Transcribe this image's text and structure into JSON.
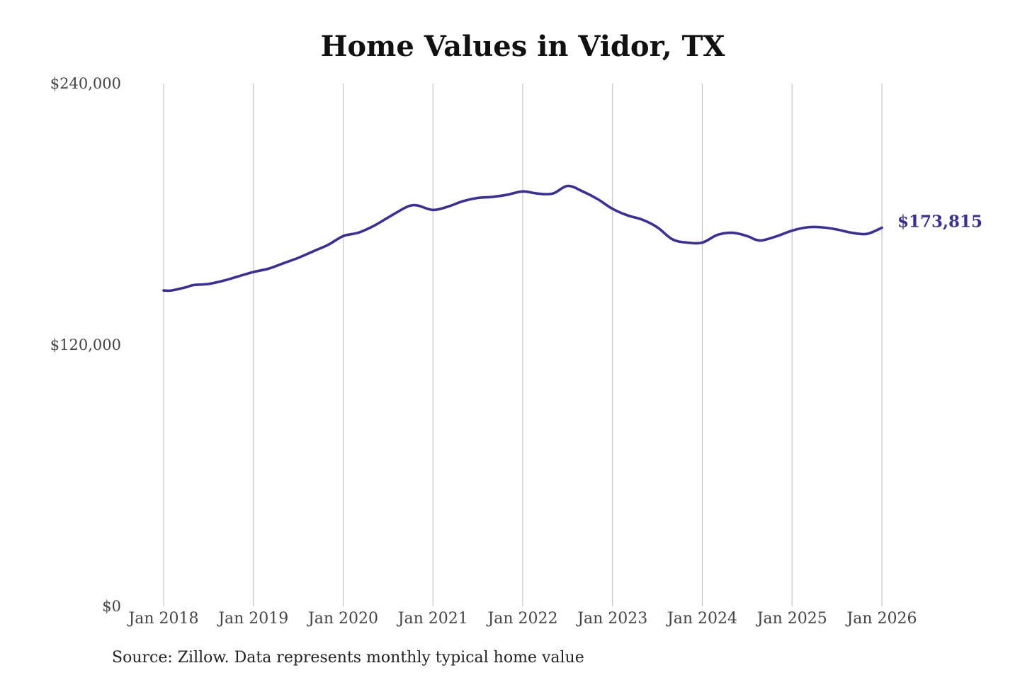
{
  "chart_data": {
    "type": "line",
    "title": "Home Values in Vidor, TX",
    "xlabel": "",
    "ylabel": "",
    "ylim": [
      0,
      240000
    ],
    "yticks": [
      0,
      120000,
      240000
    ],
    "ytick_labels": [
      "$0",
      "$120,000",
      "$240,000"
    ],
    "xlim": [
      "2018-01",
      "2026-01"
    ],
    "xticks": [
      "2018-01",
      "2019-01",
      "2020-01",
      "2021-01",
      "2022-01",
      "2023-01",
      "2024-01",
      "2025-01",
      "2026-01"
    ],
    "xtick_labels": [
      "Jan 2018",
      "Jan 2019",
      "Jan 2020",
      "Jan 2021",
      "Jan 2022",
      "Jan 2023",
      "Jan 2024",
      "Jan 2025",
      "Jan 2026"
    ],
    "grid": "vertical",
    "legend": "none",
    "series": [
      {
        "color": "#3a2f9a",
        "end_label": "$173,815",
        "points": [
          [
            "2018-01",
            145000
          ],
          [
            "2018-02",
            145000
          ],
          [
            "2018-04",
            146500
          ],
          [
            "2018-05",
            147500
          ],
          [
            "2018-07",
            148000
          ],
          [
            "2018-09",
            149500
          ],
          [
            "2018-11",
            151500
          ],
          [
            "2019-01",
            153500
          ],
          [
            "2019-03",
            155000
          ],
          [
            "2019-05",
            157500
          ],
          [
            "2019-07",
            160000
          ],
          [
            "2019-09",
            163000
          ],
          [
            "2019-11",
            166000
          ],
          [
            "2020-01",
            170000
          ],
          [
            "2020-03",
            171500
          ],
          [
            "2020-05",
            174500
          ],
          [
            "2020-07",
            178500
          ],
          [
            "2020-09",
            182500
          ],
          [
            "2020-10",
            184000
          ],
          [
            "2020-11",
            184000
          ],
          [
            "2021-01",
            182000
          ],
          [
            "2021-03",
            183500
          ],
          [
            "2021-05",
            186000
          ],
          [
            "2021-07",
            187500
          ],
          [
            "2021-09",
            188000
          ],
          [
            "2021-11",
            189000
          ],
          [
            "2022-01",
            190500
          ],
          [
            "2022-03",
            189500
          ],
          [
            "2022-05",
            189500
          ],
          [
            "2022-07",
            193000
          ],
          [
            "2022-09",
            190500
          ],
          [
            "2022-11",
            187000
          ],
          [
            "2023-01",
            182500
          ],
          [
            "2023-03",
            179500
          ],
          [
            "2023-05",
            177500
          ],
          [
            "2023-07",
            174000
          ],
          [
            "2023-09",
            168500
          ],
          [
            "2023-11",
            167000
          ],
          [
            "2024-01",
            167000
          ],
          [
            "2024-03",
            170500
          ],
          [
            "2024-05",
            171500
          ],
          [
            "2024-07",
            170000
          ],
          [
            "2024-08",
            168500
          ],
          [
            "2024-09",
            168000
          ],
          [
            "2024-11",
            170000
          ],
          [
            "2025-01",
            172500
          ],
          [
            "2025-03",
            174000
          ],
          [
            "2025-05",
            174000
          ],
          [
            "2025-07",
            173000
          ],
          [
            "2025-09",
            171500
          ],
          [
            "2025-11",
            171000
          ],
          [
            "2026-01",
            173815
          ]
        ]
      }
    ]
  },
  "source_note": "Source: Zillow. Data represents monthly typical home value"
}
